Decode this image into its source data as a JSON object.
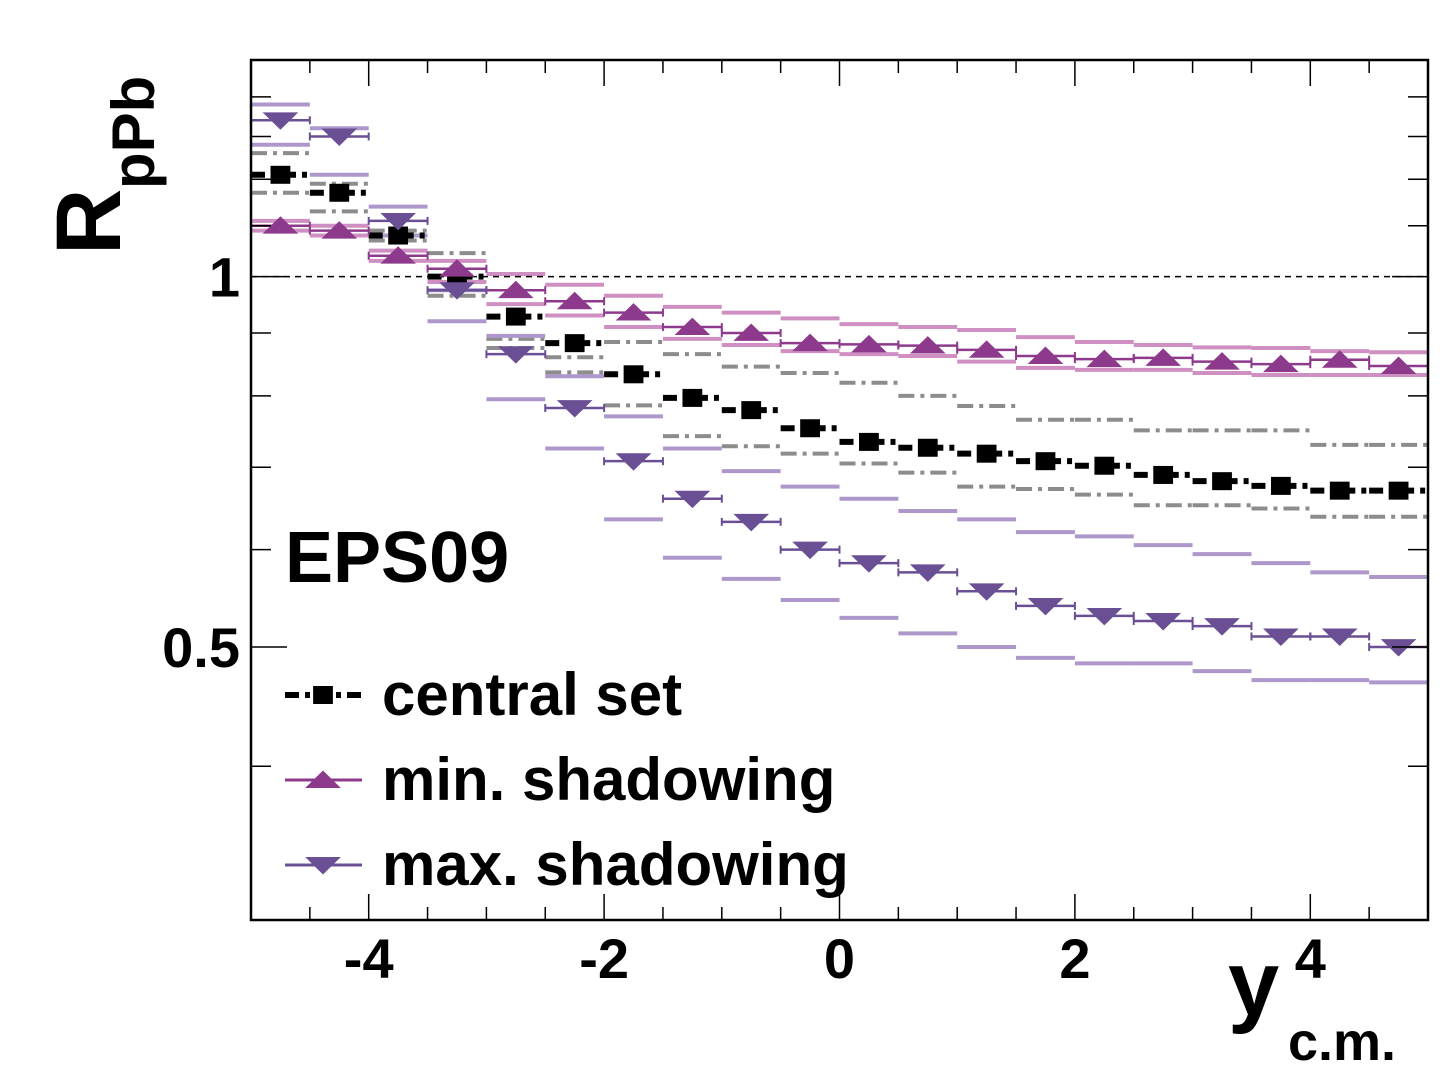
{
  "chart_data": {
    "type": "scatter",
    "title": "",
    "annotation": "EPS09",
    "ylabel": {
      "main": "R",
      "sub": "pPb"
    },
    "xlabel": {
      "main": "y",
      "sub": "c.m."
    },
    "xlim": [
      -5,
      5
    ],
    "ylim": [
      0.3,
      1.5
    ],
    "y_scale": "log",
    "y_tick_labels": [
      {
        "value": 1.0,
        "label": "1"
      },
      {
        "value": 0.5,
        "label": "0.5"
      }
    ],
    "x_tick_labels": [
      {
        "value": -4,
        "label": "-4"
      },
      {
        "value": -2,
        "label": "-2"
      },
      {
        "value": 0,
        "label": "0"
      },
      {
        "value": 2,
        "label": "2"
      },
      {
        "value": 4,
        "label": "4"
      }
    ],
    "reference_line": 1.0,
    "legend_placement": "bottom-left",
    "bin_width": 0.5,
    "x": [
      -4.75,
      -4.25,
      -3.75,
      -3.25,
      -2.75,
      -2.25,
      -1.75,
      -1.25,
      -0.75,
      -0.25,
      0.25,
      0.75,
      1.25,
      1.75,
      2.25,
      2.75,
      3.25,
      3.75,
      4.25,
      4.75
    ],
    "series": [
      {
        "name": "central set",
        "style": "dashdot-square",
        "color": "#000000",
        "band_color": "#8c8c8c",
        "values": [
          1.21,
          1.17,
          1.08,
          1.0,
          0.928,
          0.883,
          0.833,
          0.797,
          0.779,
          0.753,
          0.734,
          0.726,
          0.718,
          0.708,
          0.702,
          0.69,
          0.682,
          0.676,
          0.67,
          0.67
        ],
        "band_upper": [
          1.26,
          1.19,
          1.09,
          1.045,
          0.89,
          0.86,
          0.885,
          0.865,
          0.845,
          0.835,
          0.82,
          0.8,
          0.785,
          0.765,
          0.765,
          0.75,
          0.75,
          0.75,
          0.73,
          0.73
        ],
        "band_lower": [
          1.17,
          1.13,
          1.07,
          0.965,
          0.875,
          0.836,
          0.786,
          0.742,
          0.728,
          0.718,
          0.705,
          0.693,
          0.675,
          0.672,
          0.665,
          0.652,
          0.652,
          0.648,
          0.638,
          0.638
        ]
      },
      {
        "name": "min. shadowing",
        "style": "triangle-up",
        "color": "#8e3a8c",
        "band_color": "#cf8fc3",
        "values": [
          1.1,
          1.09,
          1.04,
          1.015,
          0.975,
          0.955,
          0.935,
          0.91,
          0.9,
          0.883,
          0.881,
          0.879,
          0.872,
          0.862,
          0.857,
          0.859,
          0.853,
          0.849,
          0.856,
          0.846
        ],
        "band_upper": [
          1.11,
          1.1,
          1.05,
          1.03,
          1.005,
          0.985,
          0.965,
          0.945,
          0.935,
          0.925,
          0.915,
          0.91,
          0.905,
          0.893,
          0.885,
          0.88,
          0.876,
          0.875,
          0.87,
          0.868
        ],
        "band_lower": [
          1.09,
          1.08,
          1.03,
          0.99,
          0.95,
          0.93,
          0.91,
          0.89,
          0.88,
          0.87,
          0.865,
          0.862,
          0.853,
          0.843,
          0.84,
          0.84,
          0.835,
          0.832,
          0.832,
          0.832
        ]
      },
      {
        "name": "max. shadowing",
        "style": "triangle-down",
        "color": "#6a4f94",
        "band_color": "#ad97cb",
        "values": [
          1.34,
          1.3,
          1.11,
          0.975,
          0.865,
          0.782,
          0.708,
          0.66,
          0.632,
          0.6,
          0.585,
          0.575,
          0.555,
          0.54,
          0.53,
          0.525,
          0.52,
          0.51,
          0.51,
          0.5
        ],
        "band_upper": [
          1.38,
          1.32,
          1.14,
          0.975,
          0.895,
          0.83,
          0.77,
          0.725,
          0.695,
          0.675,
          0.66,
          0.645,
          0.635,
          0.62,
          0.615,
          0.605,
          0.595,
          0.585,
          0.575,
          0.57
        ],
        "band_lower": [
          1.28,
          1.21,
          1.08,
          0.92,
          0.795,
          0.725,
          0.635,
          0.591,
          0.568,
          0.546,
          0.528,
          0.513,
          0.5,
          0.49,
          0.485,
          0.485,
          0.478,
          0.47,
          0.47,
          0.468
        ]
      }
    ]
  }
}
